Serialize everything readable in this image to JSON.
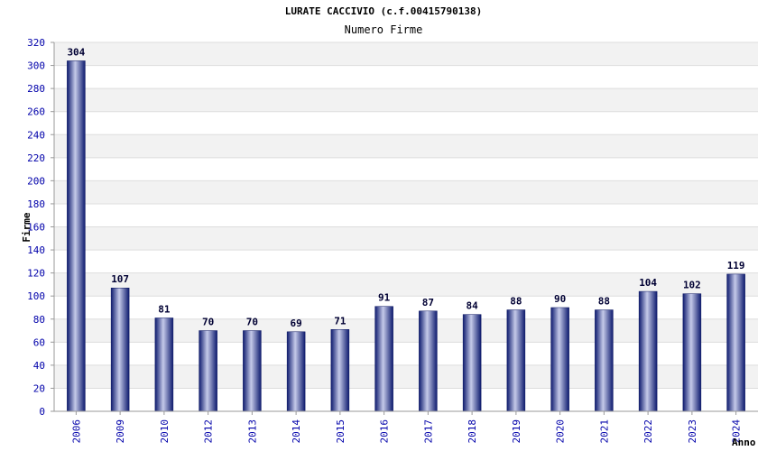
{
  "chart_data": {
    "type": "bar",
    "title": "LURATE CACCIVIO (c.f.00415790138)",
    "subtitle": "Numero Firme",
    "xlabel": "Anno",
    "ylabel": "Firme",
    "categories": [
      "2006",
      "2009",
      "2010",
      "2012",
      "2013",
      "2014",
      "2015",
      "2016",
      "2017",
      "2018",
      "2019",
      "2020",
      "2021",
      "2022",
      "2023",
      "2024"
    ],
    "values": [
      304,
      107,
      81,
      70,
      70,
      69,
      71,
      91,
      87,
      84,
      88,
      90,
      88,
      104,
      102,
      119
    ],
    "ylim": [
      0,
      320
    ],
    "ytick_step": 20,
    "grid": true,
    "colors": {
      "bar_dark": "#1a237e",
      "bar_light": "#c5cae9",
      "band": "#f2f2f2",
      "tick": "#0000aa"
    }
  }
}
